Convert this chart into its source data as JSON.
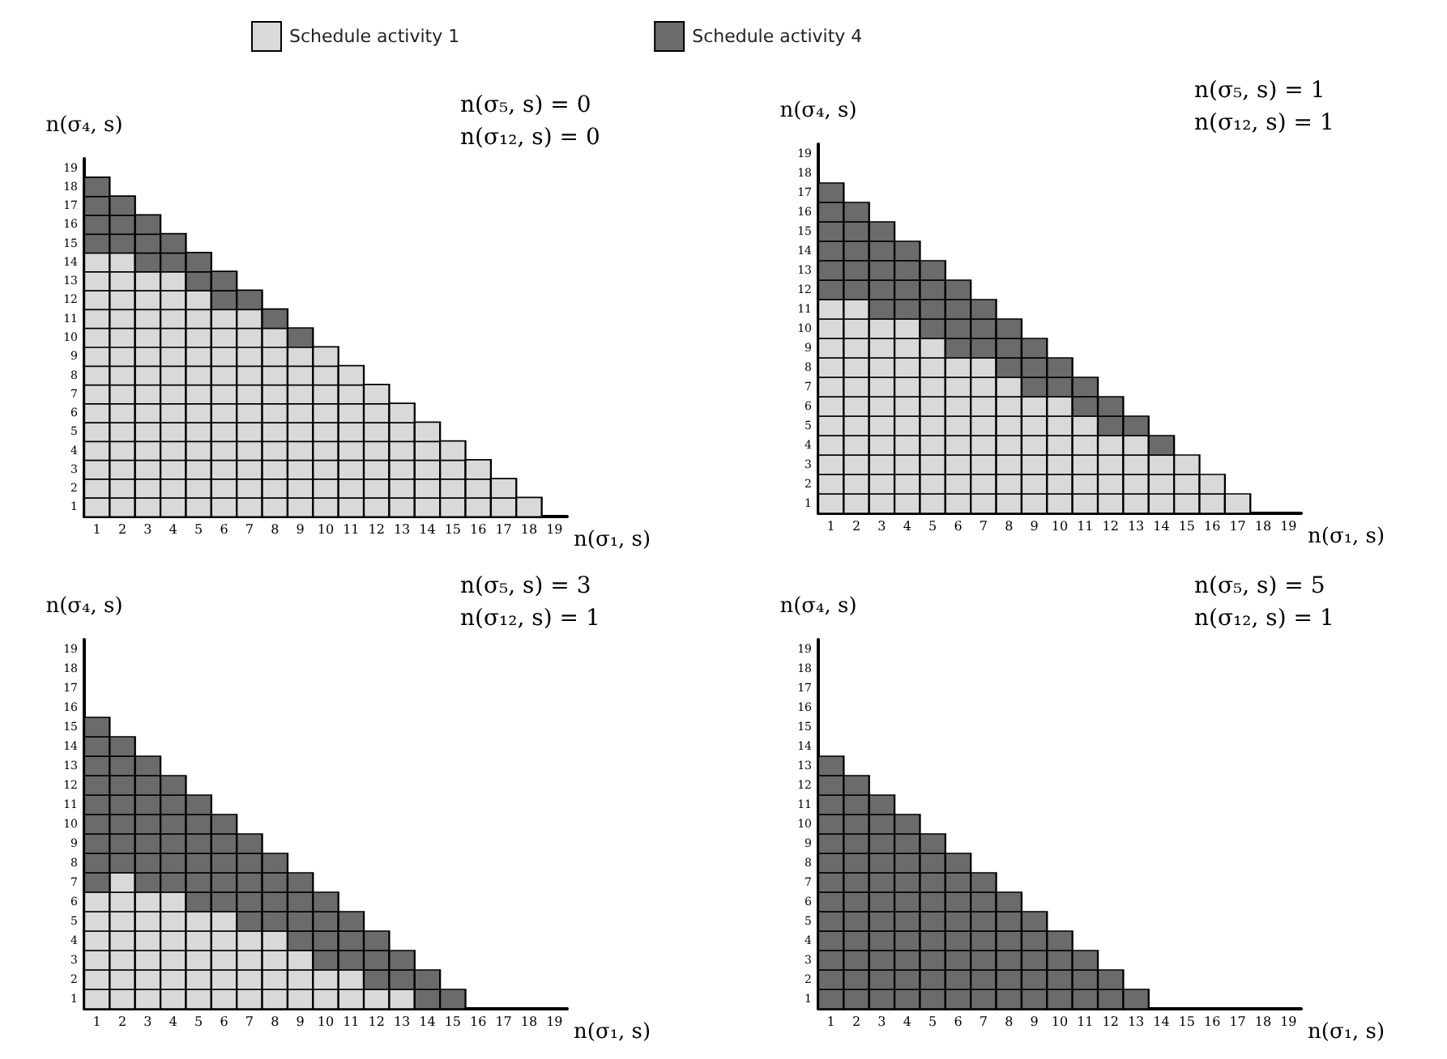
{
  "chart_data": [
    {
      "type": "scatter",
      "marker": "square",
      "grid": false,
      "legend": "top",
      "xlabel": "n(σ₁, s)",
      "ylabel": "n(σ₄, s)",
      "annotations": [
        "n(σ₅, s) = 0",
        "n(σ₁₂, s) = 0"
      ],
      "xlim": [
        0.5,
        19.5
      ],
      "ylim": [
        0.5,
        19.5
      ],
      "xticks": [
        1,
        2,
        3,
        4,
        5,
        6,
        7,
        8,
        9,
        10,
        11,
        12,
        13,
        14,
        15,
        16,
        17,
        18,
        19
      ],
      "yticks": [
        1,
        2,
        3,
        4,
        5,
        6,
        7,
        8,
        9,
        10,
        11,
        12,
        13,
        14,
        15,
        16,
        17,
        18,
        19
      ],
      "series": [
        {
          "name": "Schedule activity 1",
          "color": "#d9d9d9",
          "x": [
            1,
            1,
            1,
            1,
            1,
            1,
            1,
            1,
            1,
            1,
            1,
            1,
            1,
            1,
            2,
            2,
            2,
            2,
            2,
            2,
            2,
            2,
            2,
            2,
            2,
            2,
            2,
            2,
            3,
            3,
            3,
            3,
            3,
            3,
            3,
            3,
            3,
            3,
            3,
            3,
            3,
            4,
            4,
            4,
            4,
            4,
            4,
            4,
            4,
            4,
            4,
            4,
            4,
            4,
            5,
            5,
            5,
            5,
            5,
            5,
            5,
            5,
            5,
            5,
            5,
            5,
            6,
            6,
            6,
            6,
            6,
            6,
            6,
            6,
            6,
            6,
            6,
            7,
            7,
            7,
            7,
            7,
            7,
            7,
            7,
            7,
            7,
            7,
            8,
            8,
            8,
            8,
            8,
            8,
            8,
            8,
            8,
            8,
            9,
            9,
            9,
            9,
            9,
            9,
            9,
            9,
            9,
            10,
            10,
            10,
            10,
            10,
            10,
            10,
            10,
            10,
            11,
            11,
            11,
            11,
            11,
            11,
            11,
            11,
            12,
            12,
            12,
            12,
            12,
            12,
            12,
            13,
            13,
            13,
            13,
            13,
            13,
            14,
            14,
            14,
            14,
            14,
            15,
            15,
            15,
            15,
            16,
            16,
            16,
            17,
            17,
            18
          ],
          "values": [
            1,
            2,
            3,
            4,
            5,
            6,
            7,
            8,
            9,
            10,
            11,
            12,
            13,
            14,
            1,
            2,
            3,
            4,
            5,
            6,
            7,
            8,
            9,
            10,
            11,
            12,
            13,
            14,
            1,
            2,
            3,
            4,
            5,
            6,
            7,
            8,
            9,
            10,
            11,
            12,
            13,
            1,
            2,
            3,
            4,
            5,
            6,
            7,
            8,
            9,
            10,
            11,
            12,
            13,
            1,
            2,
            3,
            4,
            5,
            6,
            7,
            8,
            9,
            10,
            11,
            12,
            1,
            2,
            3,
            4,
            5,
            6,
            7,
            8,
            9,
            10,
            11,
            1,
            2,
            3,
            4,
            5,
            6,
            7,
            8,
            9,
            10,
            11,
            1,
            2,
            3,
            4,
            5,
            6,
            7,
            8,
            9,
            10,
            1,
            2,
            3,
            4,
            5,
            6,
            7,
            8,
            9,
            1,
            2,
            3,
            4,
            5,
            6,
            7,
            8,
            9,
            1,
            2,
            3,
            4,
            5,
            6,
            7,
            8,
            1,
            2,
            3,
            4,
            5,
            6,
            7,
            1,
            2,
            3,
            4,
            5,
            6,
            1,
            2,
            3,
            4,
            5,
            1,
            2,
            3,
            4,
            1,
            2,
            3,
            1,
            2,
            1
          ]
        },
        {
          "name": "Schedule activity 4",
          "color": "#6b6b6b",
          "x": [
            1,
            1,
            1,
            1,
            2,
            2,
            2,
            3,
            3,
            3,
            4,
            4,
            5,
            5,
            6,
            6,
            7,
            8,
            9
          ],
          "values": [
            15,
            16,
            17,
            18,
            15,
            16,
            17,
            14,
            15,
            16,
            14,
            15,
            13,
            14,
            12,
            13,
            12,
            11,
            10
          ]
        }
      ]
    },
    {
      "type": "scatter",
      "marker": "square",
      "grid": false,
      "xlabel": "n(σ₁, s)",
      "ylabel": "n(σ₄, s)",
      "annotations": [
        "n(σ₅, s) = 1",
        "n(σ₁₂, s) = 1"
      ],
      "xlim": [
        0.5,
        19.5
      ],
      "ylim": [
        0.5,
        19.5
      ],
      "xticks": [
        1,
        2,
        3,
        4,
        5,
        6,
        7,
        8,
        9,
        10,
        11,
        12,
        13,
        14,
        15,
        16,
        17,
        18,
        19
      ],
      "yticks": [
        1,
        2,
        3,
        4,
        5,
        6,
        7,
        8,
        9,
        10,
        11,
        12,
        13,
        14,
        15,
        16,
        17,
        18,
        19
      ],
      "series": [
        {
          "color": "#d9d9d9",
          "x": [
            1,
            1,
            1,
            1,
            1,
            1,
            1,
            1,
            1,
            1,
            1,
            2,
            2,
            2,
            2,
            2,
            2,
            2,
            2,
            2,
            2,
            2,
            3,
            3,
            3,
            3,
            3,
            3,
            3,
            3,
            3,
            3,
            4,
            4,
            4,
            4,
            4,
            4,
            4,
            4,
            4,
            4,
            5,
            5,
            5,
            5,
            5,
            5,
            5,
            5,
            5,
            6,
            6,
            6,
            6,
            6,
            6,
            6,
            6,
            7,
            7,
            7,
            7,
            7,
            7,
            7,
            7,
            8,
            8,
            8,
            8,
            8,
            8,
            8,
            9,
            9,
            9,
            9,
            9,
            9,
            10,
            10,
            10,
            10,
            10,
            10,
            11,
            11,
            11,
            11,
            11,
            12,
            12,
            12,
            12,
            13,
            13,
            13,
            13,
            14,
            14,
            14,
            15,
            15,
            15,
            16,
            16,
            17
          ],
          "values": [
            1,
            2,
            3,
            4,
            5,
            6,
            7,
            8,
            9,
            10,
            11,
            1,
            2,
            3,
            4,
            5,
            6,
            7,
            8,
            9,
            10,
            11,
            1,
            2,
            3,
            4,
            5,
            6,
            7,
            8,
            9,
            10,
            1,
            2,
            3,
            4,
            5,
            6,
            7,
            8,
            9,
            10,
            1,
            2,
            3,
            4,
            5,
            6,
            7,
            8,
            9,
            1,
            2,
            3,
            4,
            5,
            6,
            7,
            8,
            1,
            2,
            3,
            4,
            5,
            6,
            7,
            8,
            1,
            2,
            3,
            4,
            5,
            6,
            7,
            1,
            2,
            3,
            4,
            5,
            6,
            1,
            2,
            3,
            4,
            5,
            6,
            1,
            2,
            3,
            4,
            5,
            1,
            2,
            3,
            4,
            1,
            2,
            3,
            4,
            1,
            2,
            3,
            1,
            2,
            3,
            1,
            2,
            1
          ]
        },
        {
          "color": "#6b6b6b",
          "x": [
            1,
            1,
            1,
            1,
            1,
            1,
            2,
            2,
            2,
            2,
            2,
            3,
            3,
            3,
            3,
            3,
            4,
            4,
            4,
            4,
            5,
            5,
            5,
            5,
            6,
            6,
            6,
            6,
            7,
            7,
            7,
            8,
            8,
            8,
            9,
            9,
            9,
            10,
            10,
            11,
            11,
            12,
            12,
            13,
            14
          ],
          "values": [
            12,
            13,
            14,
            15,
            16,
            17,
            12,
            13,
            14,
            15,
            16,
            11,
            12,
            13,
            14,
            15,
            11,
            12,
            13,
            14,
            10,
            11,
            12,
            13,
            9,
            10,
            11,
            12,
            9,
            10,
            11,
            8,
            9,
            10,
            7,
            8,
            9,
            7,
            8,
            6,
            7,
            5,
            6,
            5,
            4
          ]
        }
      ]
    },
    {
      "type": "scatter",
      "marker": "square",
      "grid": false,
      "xlabel": "n(σ₁, s)",
      "ylabel": "n(σ₄, s)",
      "annotations": [
        "n(σ₅, s) = 3",
        "n(σ₁₂, s) = 1"
      ],
      "xlim": [
        0.5,
        19.5
      ],
      "ylim": [
        0.5,
        19.5
      ],
      "xticks": [
        1,
        2,
        3,
        4,
        5,
        6,
        7,
        8,
        9,
        10,
        11,
        12,
        13,
        14,
        15,
        16,
        17,
        18,
        19
      ],
      "yticks": [
        1,
        2,
        3,
        4,
        5,
        6,
        7,
        8,
        9,
        10,
        11,
        12,
        13,
        14,
        15,
        16,
        17,
        18,
        19
      ],
      "series": [
        {
          "color": "#d9d9d9",
          "x": [
            1,
            1,
            1,
            1,
            1,
            1,
            2,
            2,
            2,
            2,
            2,
            2,
            2,
            3,
            3,
            3,
            3,
            3,
            3,
            4,
            4,
            4,
            4,
            4,
            4,
            5,
            5,
            5,
            5,
            5,
            6,
            6,
            6,
            6,
            6,
            7,
            7,
            7,
            7,
            8,
            8,
            8,
            8,
            9,
            9,
            9,
            10,
            10,
            11,
            11,
            12,
            13
          ],
          "values": [
            1,
            2,
            3,
            4,
            5,
            6,
            1,
            2,
            3,
            4,
            5,
            6,
            7,
            1,
            2,
            3,
            4,
            5,
            6,
            1,
            2,
            3,
            4,
            5,
            6,
            1,
            2,
            3,
            4,
            5,
            1,
            2,
            3,
            4,
            5,
            1,
            2,
            3,
            4,
            1,
            2,
            3,
            4,
            1,
            2,
            3,
            1,
            2,
            1,
            2,
            1,
            1
          ]
        },
        {
          "color": "#6b6b6b",
          "x": [
            1,
            1,
            1,
            1,
            1,
            1,
            1,
            1,
            1,
            2,
            2,
            2,
            2,
            2,
            2,
            2,
            3,
            3,
            3,
            3,
            3,
            3,
            3,
            4,
            4,
            4,
            4,
            4,
            4,
            5,
            5,
            5,
            5,
            5,
            5,
            6,
            6,
            6,
            6,
            6,
            7,
            7,
            7,
            7,
            7,
            8,
            8,
            8,
            8,
            9,
            9,
            9,
            9,
            10,
            10,
            10,
            10,
            11,
            11,
            11,
            12,
            12,
            12,
            13,
            13,
            14,
            14,
            15
          ],
          "values": [
            7,
            8,
            9,
            10,
            11,
            12,
            13,
            14,
            15,
            8,
            9,
            10,
            11,
            12,
            13,
            14,
            7,
            8,
            9,
            10,
            11,
            12,
            13,
            7,
            8,
            9,
            10,
            11,
            12,
            6,
            7,
            8,
            9,
            10,
            11,
            6,
            7,
            8,
            9,
            10,
            5,
            6,
            7,
            8,
            9,
            5,
            6,
            7,
            8,
            4,
            5,
            6,
            7,
            3,
            4,
            5,
            6,
            3,
            4,
            5,
            2,
            3,
            4,
            2,
            3,
            1,
            2,
            1
          ]
        }
      ]
    },
    {
      "type": "scatter",
      "marker": "square",
      "grid": false,
      "xlabel": "n(σ₁, s)",
      "ylabel": "n(σ₄, s)",
      "annotations": [
        "n(σ₅, s) = 5",
        "n(σ₁₂, s) = 1"
      ],
      "xlim": [
        0.5,
        19.5
      ],
      "ylim": [
        0.5,
        19.5
      ],
      "xticks": [
        1,
        2,
        3,
        4,
        5,
        6,
        7,
        8,
        9,
        10,
        11,
        12,
        13,
        14,
        15,
        16,
        17,
        18,
        19
      ],
      "yticks": [
        1,
        2,
        3,
        4,
        5,
        6,
        7,
        8,
        9,
        10,
        11,
        12,
        13,
        14,
        15,
        16,
        17,
        18,
        19
      ],
      "series": [
        {
          "color": "#6b6b6b",
          "x": [
            1,
            1,
            1,
            1,
            1,
            1,
            1,
            1,
            1,
            1,
            1,
            1,
            1,
            2,
            2,
            2,
            2,
            2,
            2,
            2,
            2,
            2,
            2,
            2,
            2,
            3,
            3,
            3,
            3,
            3,
            3,
            3,
            3,
            3,
            3,
            3,
            4,
            4,
            4,
            4,
            4,
            4,
            4,
            4,
            4,
            4,
            5,
            5,
            5,
            5,
            5,
            5,
            5,
            5,
            5,
            6,
            6,
            6,
            6,
            6,
            6,
            6,
            6,
            7,
            7,
            7,
            7,
            7,
            7,
            7,
            8,
            8,
            8,
            8,
            8,
            8,
            9,
            9,
            9,
            9,
            9,
            10,
            10,
            10,
            10,
            11,
            11,
            11,
            12,
            12,
            13
          ],
          "values": [
            1,
            2,
            3,
            4,
            5,
            6,
            7,
            8,
            9,
            10,
            11,
            12,
            13,
            1,
            2,
            3,
            4,
            5,
            6,
            7,
            8,
            9,
            10,
            11,
            12,
            1,
            2,
            3,
            4,
            5,
            6,
            7,
            8,
            9,
            10,
            11,
            1,
            2,
            3,
            4,
            5,
            6,
            7,
            8,
            9,
            10,
            1,
            2,
            3,
            4,
            5,
            6,
            7,
            8,
            9,
            1,
            2,
            3,
            4,
            5,
            6,
            7,
            8,
            1,
            2,
            3,
            4,
            5,
            6,
            7,
            1,
            2,
            3,
            4,
            5,
            6,
            1,
            2,
            3,
            4,
            5,
            1,
            2,
            3,
            4,
            1,
            2,
            3,
            1,
            2,
            1
          ]
        }
      ]
    }
  ]
}
